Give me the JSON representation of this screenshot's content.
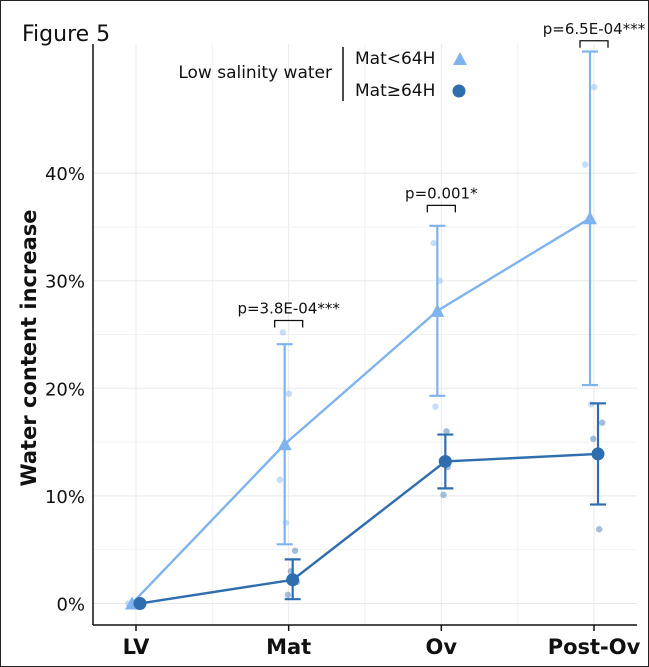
{
  "figure_label": "Figure 5",
  "colors": {
    "series_light": "#7FB3EE",
    "series_dark": "#2F6EAE",
    "grid": "#e8e8e8",
    "axis": "#111111"
  },
  "chart_data": {
    "type": "line",
    "ylabel": "Water content increase",
    "xlabel": "",
    "categories": [
      "LV",
      "Mat",
      "Ov",
      "Post-Ov"
    ],
    "ylim": [
      -0.02,
      0.52
    ],
    "yticks": [
      0,
      0.1,
      0.2,
      0.3,
      0.4
    ],
    "ytick_labels": [
      "0%",
      "10%",
      "20%",
      "30%",
      "40%"
    ],
    "grid": true,
    "legend": {
      "title": "Low salinity water",
      "placement": "top-center",
      "entries": [
        "Mat<64H",
        "Mat≥64H"
      ]
    },
    "series": [
      {
        "name": "Mat<64H",
        "marker": "triangle",
        "color": "#7FB3EE",
        "values": [
          0.0,
          0.148,
          0.272,
          0.358
        ],
        "lower": [
          0.0,
          0.055,
          0.193,
          0.203
        ],
        "upper": [
          0.0,
          0.241,
          0.351,
          0.513
        ],
        "points": [
          [
            0,
            0.0
          ],
          [
            0,
            0.001
          ],
          [
            1,
            0.252
          ],
          [
            1,
            0.195
          ],
          [
            1,
            0.115
          ],
          [
            1,
            0.075
          ],
          [
            2,
            0.335
          ],
          [
            2,
            0.3
          ],
          [
            2,
            0.183
          ],
          [
            3,
            0.48
          ],
          [
            3,
            0.408
          ],
          [
            3,
            0.185
          ]
        ]
      },
      {
        "name": "Mat≥64H",
        "marker": "circle",
        "color": "#2F6EAE",
        "values": [
          0.0,
          0.022,
          0.132,
          0.139
        ],
        "lower": [
          0.0,
          0.004,
          0.107,
          0.092
        ],
        "upper": [
          0.0,
          0.041,
          0.157,
          0.186
        ],
        "points": [
          [
            0,
            0.0
          ],
          [
            1,
            0.049
          ],
          [
            1,
            0.03
          ],
          [
            1,
            0.02
          ],
          [
            1,
            0.008
          ],
          [
            2,
            0.16
          ],
          [
            2,
            0.133
          ],
          [
            2,
            0.127
          ],
          [
            2,
            0.101
          ],
          [
            3,
            0.168
          ],
          [
            3,
            0.153
          ],
          [
            3,
            0.069
          ]
        ]
      }
    ],
    "annotations": [
      {
        "category": 1,
        "y": 0.263,
        "text": "p=3.8E-04***"
      },
      {
        "category": 2,
        "y": 0.37,
        "text": "p=0.001*"
      },
      {
        "category": 3,
        "y": 0.523,
        "text": "p=6.5E-04***"
      }
    ]
  }
}
